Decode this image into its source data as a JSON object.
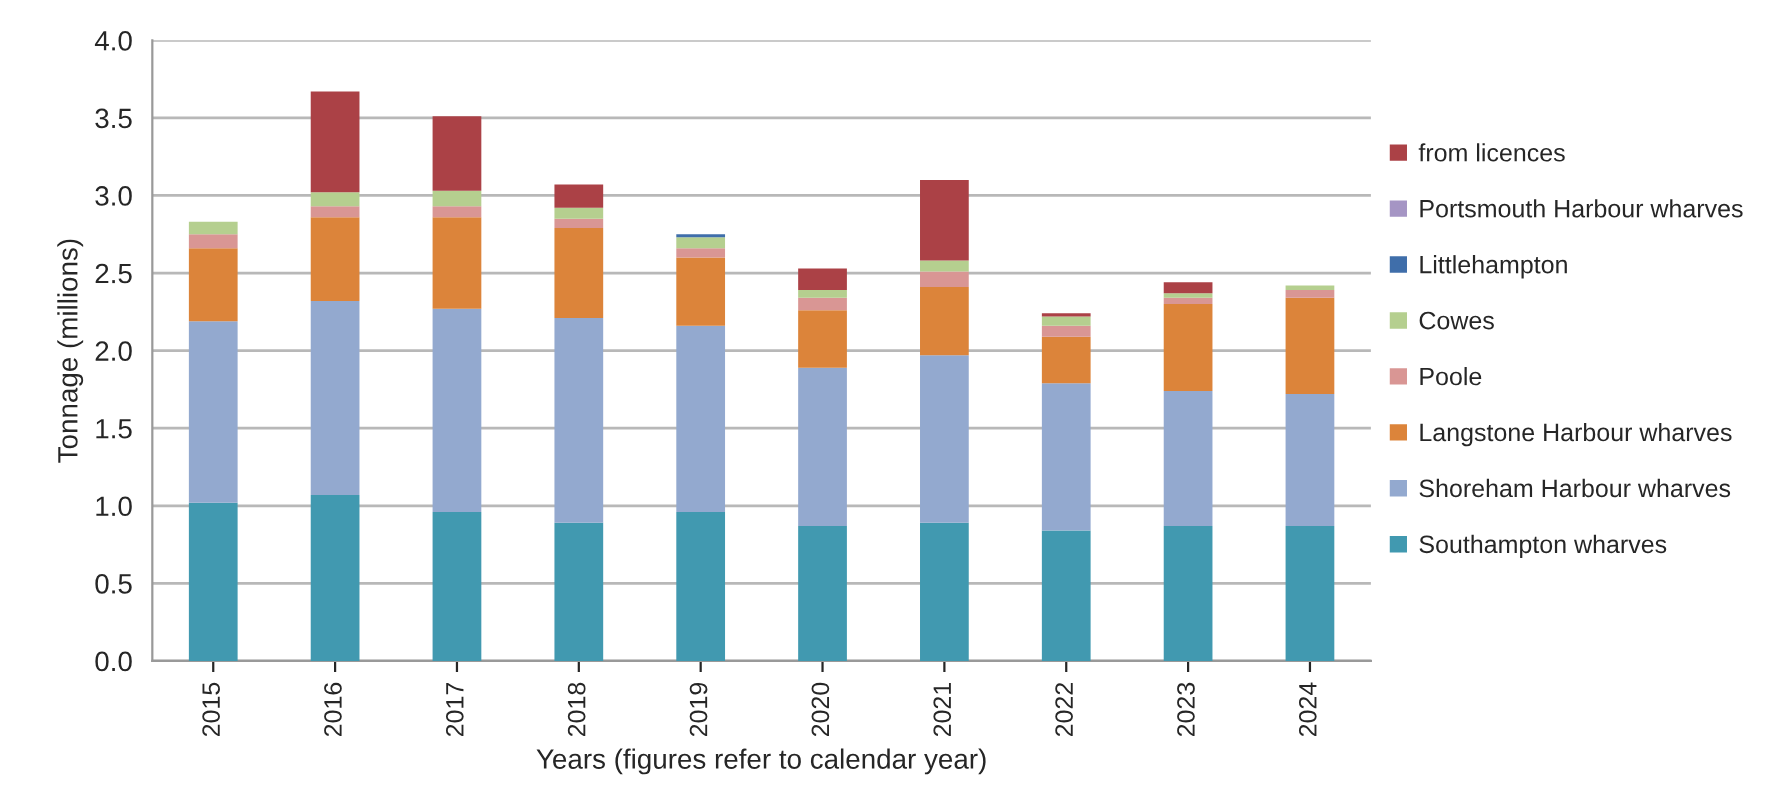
{
  "chart_data": {
    "type": "bar",
    "stacked": true,
    "xlabel": "Years (figures refer to calendar year)",
    "ylabel": "Tonnage (millions)",
    "categories": [
      "2015",
      "2016",
      "2017",
      "2018",
      "2019",
      "2020",
      "2021",
      "2022",
      "2023",
      "2024"
    ],
    "series": [
      {
        "name": "Southampton wharves",
        "color": "#4199b0",
        "values": [
          1.02,
          1.07,
          0.96,
          0.89,
          0.96,
          0.87,
          0.89,
          0.84,
          0.87,
          0.87
        ]
      },
      {
        "name": "Shoreham Harbour wharves",
        "color": "#93a9cf",
        "values": [
          1.17,
          1.25,
          1.31,
          1.32,
          1.2,
          1.02,
          1.08,
          0.95,
          0.87,
          0.85
        ]
      },
      {
        "name": "Langstone Harbour wharves",
        "color": "#dc843a",
        "values": [
          0.47,
          0.54,
          0.59,
          0.58,
          0.44,
          0.37,
          0.44,
          0.3,
          0.56,
          0.62
        ]
      },
      {
        "name": "Poole",
        "color": "#d99694",
        "values": [
          0.09,
          0.07,
          0.07,
          0.06,
          0.06,
          0.08,
          0.1,
          0.07,
          0.04,
          0.05
        ]
      },
      {
        "name": "Cowes",
        "color": "#b5cf8f",
        "values": [
          0.08,
          0.09,
          0.1,
          0.07,
          0.07,
          0.05,
          0.07,
          0.06,
          0.03,
          0.03
        ]
      },
      {
        "name": "Littlehampton",
        "color": "#3f6eaa",
        "values": [
          0,
          0,
          0,
          0,
          0.02,
          0,
          0,
          0,
          0,
          0
        ]
      },
      {
        "name": "Portsmouth Harbour wharves",
        "color": "#a595c4",
        "values": [
          0,
          0,
          0,
          0,
          0,
          0,
          0,
          0,
          0,
          0
        ]
      },
      {
        "name": "from licences",
        "color": "#ab4146",
        "values": [
          0,
          0.65,
          0.48,
          0.15,
          0,
          0.14,
          0.52,
          0.02,
          0.07,
          0
        ]
      }
    ],
    "ylim": [
      0,
      4
    ],
    "yticks": [
      {
        "value": 0,
        "label": "0.0"
      },
      {
        "value": 0.5,
        "label": "0.5"
      },
      {
        "value": 1,
        "label": "1.0"
      },
      {
        "value": 1.5,
        "label": "1.5"
      },
      {
        "value": 2,
        "label": "2.0"
      },
      {
        "value": 2.5,
        "label": "2.5"
      },
      {
        "value": 3,
        "label": "3.0"
      },
      {
        "value": 3.5,
        "label": "3.5"
      },
      {
        "value": 4,
        "label": "4.0"
      }
    ],
    "grid": "y",
    "legend": "right"
  }
}
